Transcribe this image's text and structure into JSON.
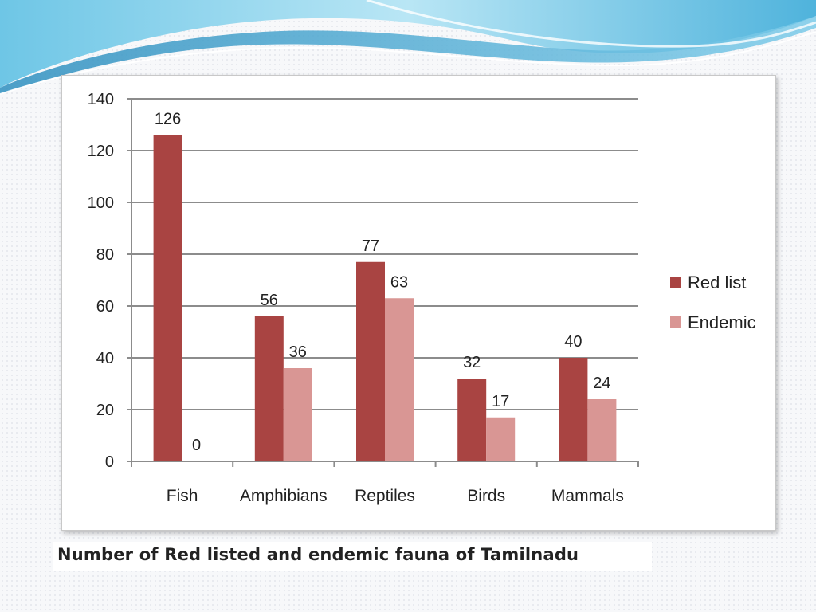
{
  "colors": {
    "red_list": "#a94442",
    "endemic": "#d99694",
    "grid": "#8c8c8c",
    "wave_dark": "#3aa0c8",
    "wave_light": "#8fd3ec"
  },
  "caption": "Number of Red listed and endemic fauna of Tamilnadu",
  "chart_data": {
    "type": "bar",
    "title": "",
    "xlabel": "",
    "ylabel": "",
    "categories": [
      "Fish",
      "Amphibians",
      "Reptiles",
      "Birds",
      "Mammals"
    ],
    "series": [
      {
        "name": "Red list",
        "values": [
          126,
          56,
          77,
          32,
          40
        ],
        "color": "#a94442"
      },
      {
        "name": "Endemic",
        "values": [
          0,
          36,
          63,
          17,
          24
        ],
        "color": "#d99694"
      }
    ],
    "ylim": [
      0,
      140
    ],
    "yticks": [
      0,
      20,
      40,
      60,
      80,
      100,
      120,
      140
    ],
    "grid": true,
    "legend_position": "right",
    "data_labels": true
  }
}
